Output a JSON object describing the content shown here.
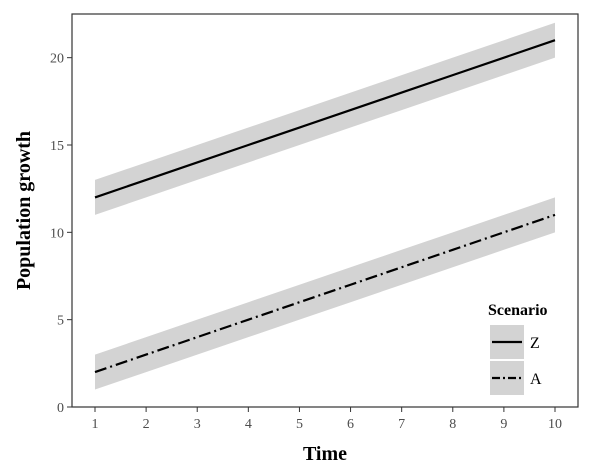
{
  "chart_data": {
    "type": "line",
    "title": "",
    "xlabel": "Time",
    "ylabel": "Population growth",
    "x": [
      1,
      2,
      3,
      4,
      5,
      6,
      7,
      8,
      9,
      10
    ],
    "xlim": [
      0.55,
      10.45
    ],
    "ylim": [
      0,
      22.5
    ],
    "xticks": [
      1,
      2,
      3,
      4,
      5,
      6,
      7,
      8,
      9,
      10
    ],
    "yticks": [
      0,
      5,
      10,
      15,
      20
    ],
    "grid": false,
    "legend": {
      "title": "Scenario",
      "placement": "bottom-right"
    },
    "series": [
      {
        "name": "Z",
        "line_style": "solid",
        "values": [
          12,
          13,
          14,
          15,
          16,
          17,
          18,
          19,
          20,
          21
        ],
        "lower": [
          11,
          12,
          13,
          14,
          15,
          16,
          17,
          18,
          19,
          20
        ],
        "upper": [
          13,
          14,
          15,
          16,
          17,
          18,
          19,
          20,
          21,
          22
        ]
      },
      {
        "name": "A",
        "line_style": "dashdot",
        "values": [
          2,
          3,
          4,
          5,
          6,
          7,
          8,
          9,
          10,
          11
        ],
        "lower": [
          1,
          2,
          3,
          4,
          5,
          6,
          7,
          8,
          9,
          10
        ],
        "upper": [
          3,
          4,
          5,
          6,
          7,
          8,
          9,
          10,
          11,
          12
        ]
      }
    ],
    "colors": {
      "line": "#000000",
      "band": "#d3d3d3",
      "panel_border": "#333333",
      "tick": "#333333"
    }
  }
}
